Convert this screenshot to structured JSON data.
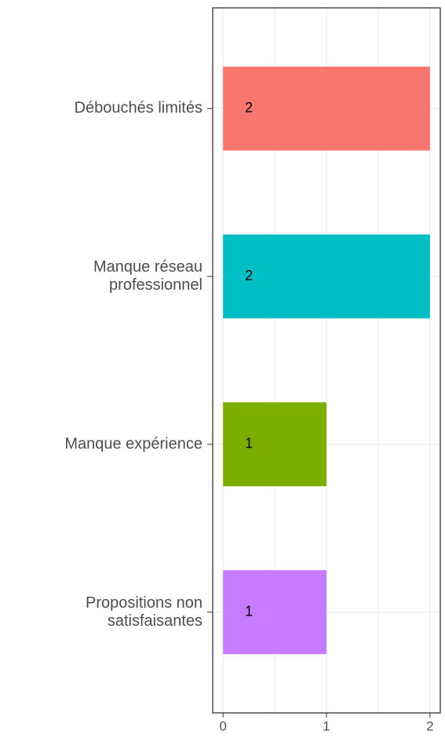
{
  "chart_data": {
    "type": "barh",
    "categories": [
      "Débouchés limités",
      "Manque réseau\nprofessionnel",
      "Manque expérience",
      "Propositions non\nsatisfaisantes"
    ],
    "values": [
      2,
      2,
      1,
      1
    ],
    "colors": [
      "#F8766D",
      "#00BFC4",
      "#7CAE00",
      "#C77CFF"
    ],
    "xlim": [
      -0.1,
      2.1
    ],
    "xticks": [
      0,
      1,
      2
    ],
    "grid": true
  }
}
